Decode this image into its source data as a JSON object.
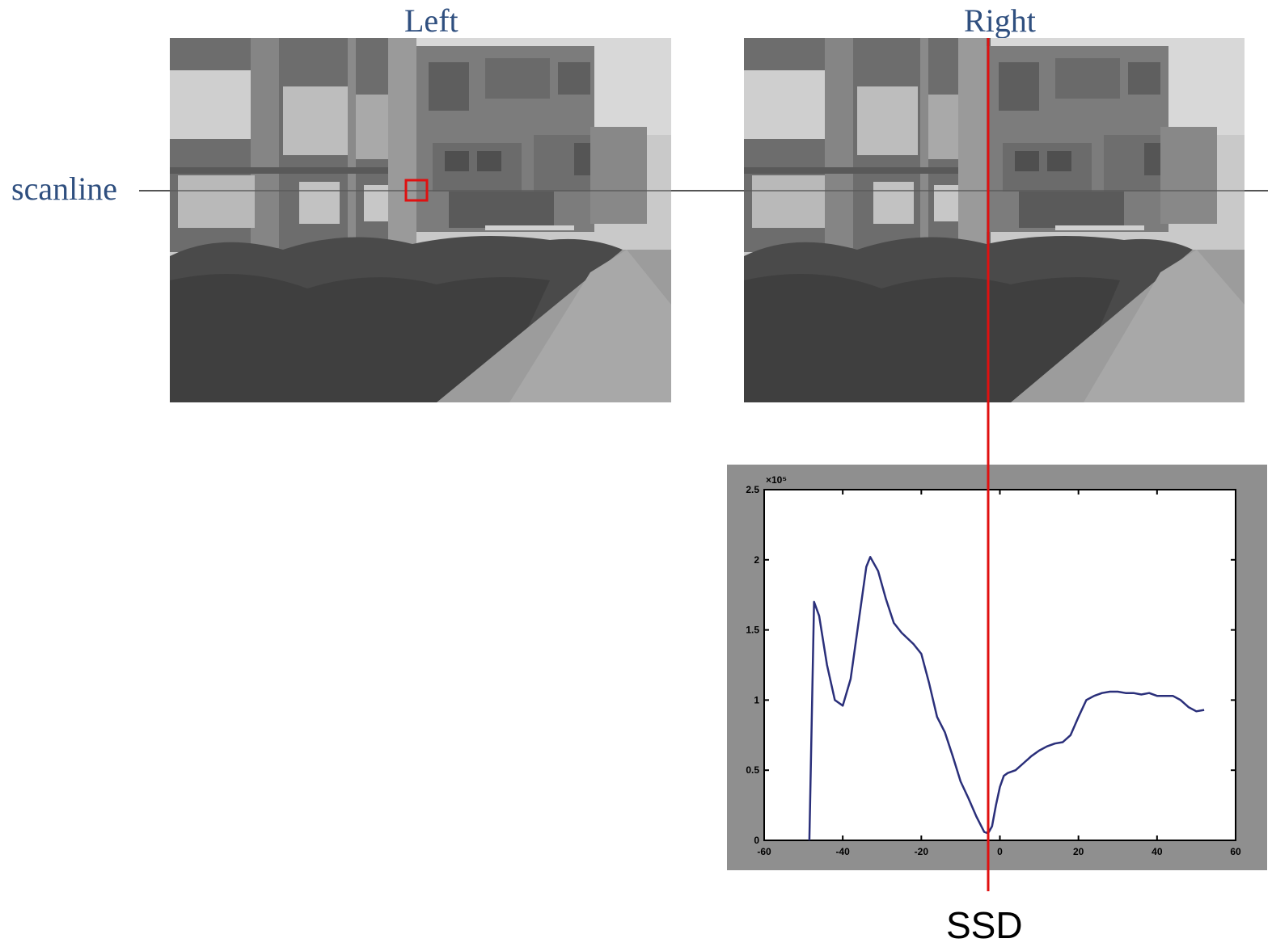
{
  "titles": {
    "left": "Left",
    "right": "Right"
  },
  "labels": {
    "scanline": "scanline",
    "ssd": "SSD"
  },
  "colors": {
    "title": "#2f4f7f",
    "marker": "#e01010",
    "curve": "#2a2f7a",
    "scanline": "#555555"
  },
  "chart_data": {
    "type": "line",
    "xlim": [
      -60,
      60
    ],
    "ylim": [
      0,
      2.5
    ],
    "y_scale_label": "×10⁵",
    "xticks": [
      "-60",
      "-40",
      "-20",
      "0",
      "20",
      "40",
      "60"
    ],
    "yticks": [
      "0",
      "0.5",
      "1",
      "1.5",
      "2",
      "2.5"
    ],
    "grid": false,
    "series": [
      {
        "x": [
          -48.5,
          -47.3,
          -46,
          -44,
          -42,
          -40,
          -38,
          -36,
          -34,
          -33,
          -31,
          -29,
          -27,
          -25,
          -22,
          -20,
          -18,
          -16,
          -14,
          -12,
          -10,
          -8,
          -6,
          -4,
          -3,
          -2,
          -1,
          0,
          1,
          2,
          4,
          6,
          8,
          10,
          12,
          14,
          16,
          18,
          20,
          22,
          24,
          26,
          28,
          30,
          32,
          34,
          36,
          38,
          40,
          42,
          44,
          46,
          48,
          50,
          52
        ],
        "y": [
          0,
          1.7,
          1.6,
          1.25,
          1.0,
          0.96,
          1.15,
          1.55,
          1.95,
          2.02,
          1.92,
          1.72,
          1.55,
          1.48,
          1.4,
          1.33,
          1.12,
          0.88,
          0.77,
          0.6,
          0.42,
          0.3,
          0.17,
          0.06,
          0.05,
          0.1,
          0.25,
          0.38,
          0.46,
          0.48,
          0.5,
          0.55,
          0.6,
          0.64,
          0.67,
          0.69,
          0.7,
          0.75,
          0.88,
          1.0,
          1.03,
          1.05,
          1.06,
          1.06,
          1.05,
          1.05,
          1.04,
          1.05,
          1.03,
          1.03,
          1.03,
          1.0,
          0.95,
          0.92,
          0.93
        ]
      }
    ],
    "marker_x": -3
  }
}
